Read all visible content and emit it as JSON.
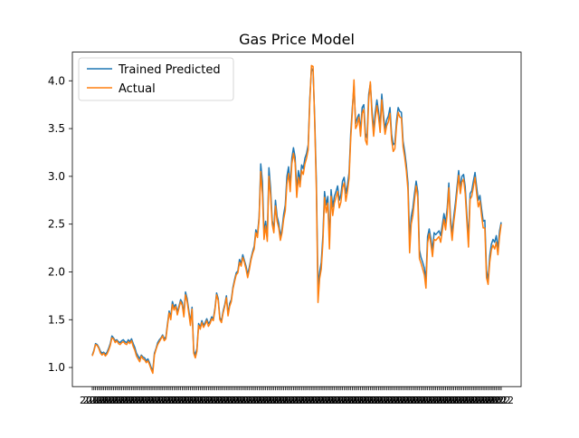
{
  "chart_data": {
    "type": "line",
    "title": "Gas Price Model",
    "xlabel": "",
    "ylabel": "",
    "ylim": [
      0.8,
      4.3
    ],
    "yticks": [
      1.0,
      1.5,
      2.0,
      2.5,
      3.0,
      3.5,
      4.0
    ],
    "ytick_labels": [
      "1.0",
      "1.5",
      "2.0",
      "2.5",
      "3.0",
      "3.5",
      "4.0"
    ],
    "x_tick_labels_note": "dense overlapping date labels (unreadable)",
    "grid": false,
    "legend_position": "top-left",
    "series": [
      {
        "name": "Trained Predicted",
        "color": "#1f77b4",
        "values": [
          1.13,
          1.18,
          1.25,
          1.24,
          1.21,
          1.17,
          1.15,
          1.16,
          1.14,
          1.16,
          1.2,
          1.25,
          1.33,
          1.31,
          1.28,
          1.29,
          1.27,
          1.26,
          1.28,
          1.29,
          1.27,
          1.26,
          1.29,
          1.27,
          1.3,
          1.25,
          1.21,
          1.15,
          1.12,
          1.09,
          1.13,
          1.11,
          1.1,
          1.07,
          1.09,
          1.05,
          1.0,
          0.97,
          1.15,
          1.2,
          1.26,
          1.29,
          1.31,
          1.34,
          1.3,
          1.32,
          1.46,
          1.59,
          1.53,
          1.69,
          1.63,
          1.66,
          1.58,
          1.64,
          1.71,
          1.68,
          1.56,
          1.79,
          1.72,
          1.6,
          1.47,
          1.63,
          1.18,
          1.13,
          1.2,
          1.46,
          1.42,
          1.49,
          1.44,
          1.47,
          1.51,
          1.46,
          1.48,
          1.53,
          1.51,
          1.62,
          1.78,
          1.72,
          1.52,
          1.49,
          1.59,
          1.66,
          1.75,
          1.56,
          1.67,
          1.71,
          1.84,
          1.92,
          1.99,
          2.01,
          2.13,
          2.09,
          2.18,
          2.12,
          2.06,
          1.97,
          2.05,
          2.14,
          2.21,
          2.27,
          2.44,
          2.39,
          2.58,
          3.13,
          2.95,
          2.41,
          2.53,
          2.37,
          3.09,
          2.88,
          2.54,
          2.45,
          2.75,
          2.58,
          2.51,
          2.37,
          2.45,
          2.6,
          2.7,
          3.0,
          3.1,
          2.9,
          3.19,
          3.3,
          3.2,
          2.85,
          3.06,
          2.95,
          3.12,
          3.08,
          3.19,
          3.24,
          3.33,
          3.82,
          4.13,
          4.1,
          3.6,
          2.95,
          1.85,
          2.0,
          2.1,
          2.38,
          2.84,
          2.7,
          2.79,
          2.33,
          2.86,
          2.68,
          2.79,
          2.84,
          2.9,
          2.75,
          2.81,
          2.95,
          2.99,
          2.82,
          2.91,
          3.04,
          3.45,
          3.72,
          3.95,
          3.55,
          3.61,
          3.65,
          3.48,
          3.72,
          3.75,
          3.45,
          3.4,
          3.86,
          3.97,
          3.7,
          3.49,
          3.67,
          3.8,
          3.68,
          3.53,
          3.86,
          3.65,
          3.5,
          3.59,
          3.63,
          3.72,
          3.44,
          3.33,
          3.35,
          3.58,
          3.72,
          3.68,
          3.67,
          3.37,
          3.26,
          3.12,
          2.93,
          2.35,
          2.58,
          2.67,
          2.82,
          2.95,
          2.84,
          2.23,
          2.15,
          2.1,
          2.04,
          1.92,
          2.37,
          2.45,
          2.35,
          2.23,
          2.41,
          2.39,
          2.41,
          2.43,
          2.38,
          2.49,
          2.61,
          2.51,
          2.67,
          2.93,
          2.57,
          2.4,
          2.58,
          2.72,
          2.89,
          3.06,
          2.88,
          3.0,
          3.02,
          2.89,
          2.6,
          2.34,
          2.82,
          2.85,
          2.95,
          3.04,
          2.89,
          2.75,
          2.8,
          2.66,
          2.53,
          2.54,
          2.02,
          1.91,
          2.17,
          2.29,
          2.34,
          2.31,
          2.38,
          2.24,
          2.43,
          2.52
        ]
      },
      {
        "name": "Actual",
        "color": "#ff7f0e",
        "values": [
          1.12,
          1.17,
          1.24,
          1.23,
          1.2,
          1.15,
          1.13,
          1.15,
          1.12,
          1.14,
          1.18,
          1.23,
          1.31,
          1.3,
          1.26,
          1.28,
          1.25,
          1.24,
          1.26,
          1.27,
          1.25,
          1.24,
          1.27,
          1.25,
          1.28,
          1.22,
          1.18,
          1.12,
          1.09,
          1.06,
          1.12,
          1.09,
          1.08,
          1.05,
          1.07,
          1.03,
          0.98,
          0.94,
          1.13,
          1.19,
          1.24,
          1.27,
          1.3,
          1.33,
          1.28,
          1.3,
          1.44,
          1.57,
          1.5,
          1.66,
          1.6,
          1.64,
          1.55,
          1.62,
          1.69,
          1.65,
          1.53,
          1.76,
          1.69,
          1.57,
          1.44,
          1.61,
          1.15,
          1.1,
          1.17,
          1.44,
          1.4,
          1.47,
          1.42,
          1.45,
          1.49,
          1.43,
          1.46,
          1.51,
          1.49,
          1.6,
          1.76,
          1.7,
          1.5,
          1.47,
          1.57,
          1.64,
          1.73,
          1.54,
          1.64,
          1.69,
          1.82,
          1.9,
          1.97,
          1.99,
          2.1,
          2.06,
          2.15,
          2.1,
          2.03,
          1.94,
          2.02,
          2.12,
          2.19,
          2.24,
          2.41,
          2.36,
          2.55,
          3.05,
          2.82,
          2.34,
          2.48,
          2.32,
          3.0,
          2.8,
          2.5,
          2.41,
          2.69,
          2.53,
          2.46,
          2.33,
          2.41,
          2.55,
          2.64,
          2.92,
          3.03,
          2.84,
          3.13,
          3.24,
          3.14,
          2.78,
          2.99,
          2.89,
          3.06,
          3.02,
          3.13,
          3.19,
          3.28,
          3.78,
          4.16,
          4.15,
          3.55,
          2.85,
          1.68,
          1.93,
          2.03,
          2.31,
          2.78,
          2.62,
          2.72,
          2.24,
          2.79,
          2.59,
          2.72,
          2.78,
          2.84,
          2.67,
          2.73,
          2.88,
          2.93,
          2.74,
          2.84,
          2.98,
          3.39,
          3.68,
          4.01,
          3.5,
          3.54,
          3.62,
          3.42,
          3.66,
          3.7,
          3.38,
          3.33,
          3.8,
          3.99,
          3.64,
          3.42,
          3.6,
          3.74,
          3.62,
          3.46,
          3.8,
          3.59,
          3.44,
          3.53,
          3.57,
          3.66,
          3.38,
          3.26,
          3.29,
          3.52,
          3.67,
          3.62,
          3.61,
          3.31,
          3.2,
          3.06,
          2.86,
          2.2,
          2.5,
          2.59,
          2.75,
          2.9,
          2.78,
          2.14,
          2.09,
          2.03,
          1.97,
          1.83,
          2.3,
          2.4,
          2.29,
          2.16,
          2.34,
          2.33,
          2.35,
          2.37,
          2.31,
          2.43,
          2.55,
          2.44,
          2.61,
          2.88,
          2.5,
          2.33,
          2.52,
          2.66,
          2.83,
          3.01,
          2.82,
          2.94,
          2.97,
          2.82,
          2.53,
          2.26,
          2.76,
          2.79,
          2.89,
          2.99,
          2.82,
          2.68,
          2.74,
          2.59,
          2.46,
          2.46,
          1.94,
          1.87,
          2.1,
          2.23,
          2.28,
          2.24,
          2.31,
          2.18,
          2.37,
          2.5
        ]
      }
    ]
  }
}
